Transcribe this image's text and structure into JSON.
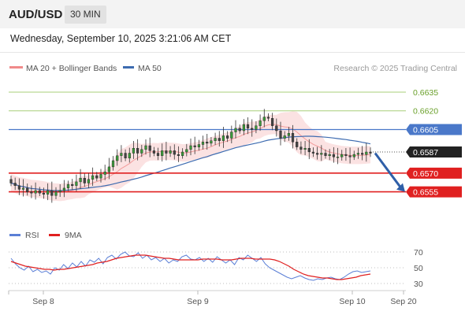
{
  "header": {
    "symbol": "AUD/USD",
    "timeframe": "30 MIN"
  },
  "datetime": "Wednesday, September 10, 2025 3:21:06 AM CET",
  "credit": "Research © 2025 Trading Central",
  "colors": {
    "bollinger": "#f08a8a",
    "ma50": "#3d6bb0",
    "resistance": "#a8cf7a",
    "pivot": "#4a78c9",
    "support": "#e02020",
    "price_tag": "#222222",
    "arrow": "#2f5fa8",
    "rsi": "#5b7fd6",
    "rsi_ma": "#e02020"
  },
  "chart_data": [
    {
      "type": "candlestick",
      "legend": [
        "MA 20 + Bollinger Bands",
        "MA 50"
      ],
      "x_ticks": [
        "Sep 8",
        "Sep 9",
        "Sep 10",
        "Sep 20"
      ],
      "ylim": [
        0.6532,
        0.6647
      ],
      "levels": [
        {
          "label": "0.6635",
          "value": 0.6635,
          "kind": "resistance"
        },
        {
          "label": "0.6620",
          "value": 0.662,
          "kind": "resistance"
        },
        {
          "label": "0.6605",
          "value": 0.6605,
          "kind": "pivot"
        },
        {
          "label": "0.6587",
          "value": 0.6587,
          "kind": "last"
        },
        {
          "label": "0.6570",
          "value": 0.657,
          "kind": "support"
        },
        {
          "label": "0.6555",
          "value": 0.6555,
          "kind": "support"
        }
      ],
      "close": [
        0.6562,
        0.656,
        0.6557,
        0.6558,
        0.6555,
        0.6554,
        0.6556,
        0.6554,
        0.6553,
        0.6556,
        0.6552,
        0.6555,
        0.6556,
        0.6558,
        0.6561,
        0.656,
        0.6563,
        0.6566,
        0.6562,
        0.6565,
        0.6568,
        0.6566,
        0.6569,
        0.6571,
        0.6575,
        0.658,
        0.6584,
        0.6586,
        0.6582,
        0.6586,
        0.659,
        0.6586,
        0.6589,
        0.6592,
        0.6588,
        0.6586,
        0.6584,
        0.6588,
        0.6586,
        0.6588,
        0.6585,
        0.6584,
        0.6587,
        0.6589,
        0.6592,
        0.6591,
        0.6593,
        0.6595,
        0.6594,
        0.6596,
        0.6598,
        0.6596,
        0.66,
        0.6598,
        0.6603,
        0.6606,
        0.6604,
        0.6609,
        0.6606,
        0.6605,
        0.6608,
        0.6612,
        0.6615,
        0.6614,
        0.6608,
        0.6604,
        0.6598,
        0.66,
        0.6602,
        0.6595,
        0.6591,
        0.6589,
        0.659,
        0.6587,
        0.6586,
        0.6585,
        0.6586,
        0.6584,
        0.6585,
        0.6583,
        0.6583,
        0.6585,
        0.6584,
        0.6583,
        0.6585,
        0.6586,
        0.6585,
        0.6587,
        0.6586
      ]
    },
    {
      "type": "line",
      "series": [
        {
          "name": "RSI"
        },
        {
          "name": "9MA"
        }
      ],
      "yticks": [
        30,
        50,
        70
      ],
      "ylim": [
        24,
        76
      ],
      "rsi": [
        62,
        55,
        50,
        47,
        52,
        45,
        48,
        44,
        46,
        42,
        50,
        47,
        54,
        49,
        56,
        51,
        58,
        52,
        60,
        57,
        62,
        55,
        63,
        66,
        61,
        67,
        70,
        65,
        64,
        69,
        62,
        66,
        60,
        63,
        58,
        62,
        56,
        60,
        58,
        64,
        66,
        61,
        60,
        63,
        58,
        62,
        57,
        64,
        60,
        56,
        60,
        54,
        63,
        60,
        66,
        62,
        58,
        63,
        55,
        50,
        47,
        44,
        41,
        38,
        36,
        38,
        40,
        37,
        35,
        34,
        36,
        35,
        37,
        38,
        36,
        35,
        38,
        42,
        45,
        46,
        44,
        45,
        46
      ],
      "ma9": [
        58,
        56,
        54,
        52,
        51,
        50,
        49,
        48,
        48,
        47,
        48,
        48,
        49,
        50,
        51,
        52,
        53,
        54,
        56,
        57,
        58,
        60,
        62,
        63,
        64,
        65,
        66,
        66,
        66,
        65,
        64,
        63,
        62,
        62,
        61,
        60,
        60,
        60,
        60,
        60,
        61,
        61,
        61,
        61,
        60,
        60,
        60,
        61,
        62,
        62,
        62,
        61,
        61,
        61,
        61,
        60,
        58,
        55,
        52,
        48,
        45,
        42,
        40,
        39,
        38,
        37,
        37,
        36,
        35,
        35,
        36,
        37,
        38,
        40,
        41,
        42
      ]
    }
  ]
}
